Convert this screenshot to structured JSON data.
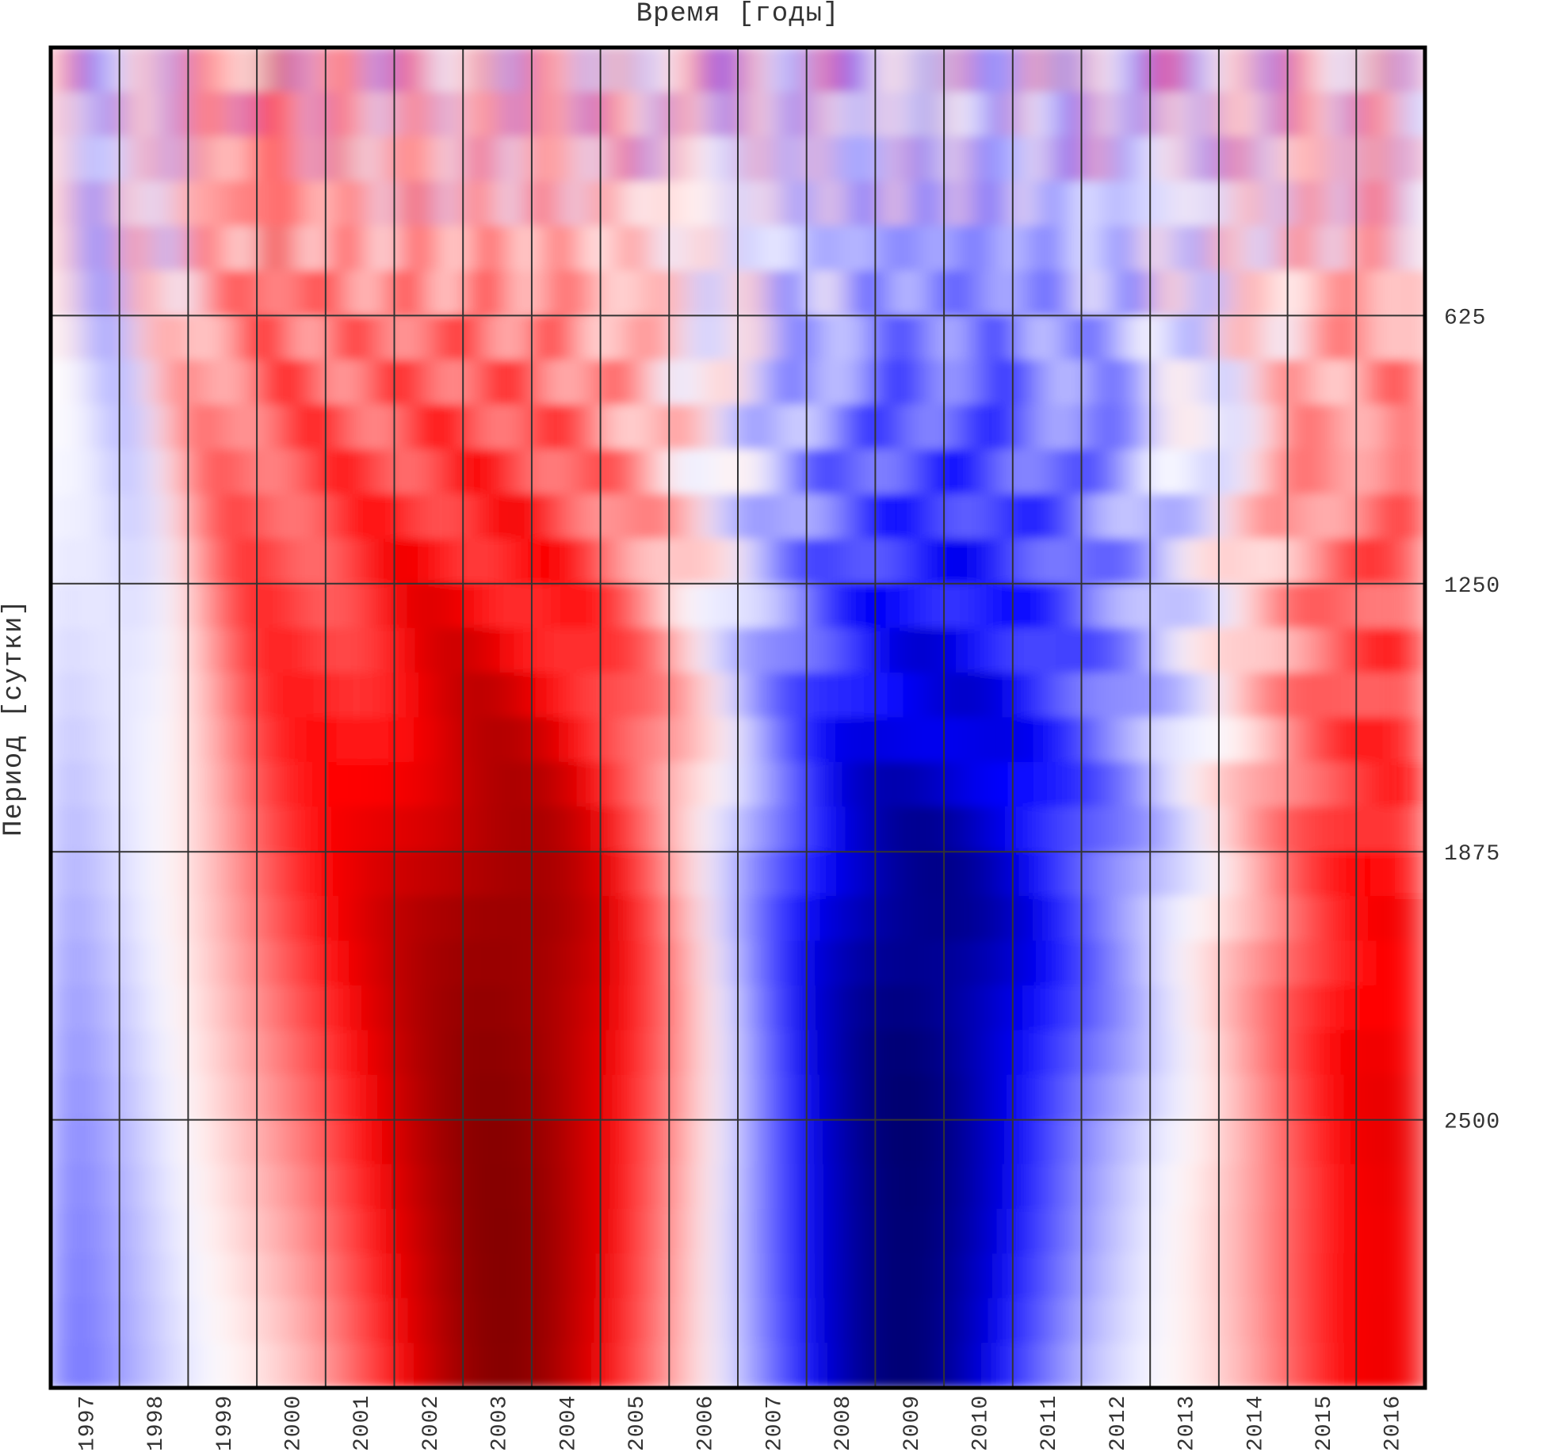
{
  "chart_data": {
    "type": "heatmap",
    "title": "Время [годы]",
    "ylabel": "Период [сутки]",
    "categories": [
      "1997",
      "1998",
      "1999",
      "2000",
      "2001",
      "2002",
      "2003",
      "2004",
      "2005",
      "2006",
      "2007",
      "2008",
      "2009",
      "2010",
      "2011",
      "2012",
      "2013",
      "2014",
      "2015",
      "2016"
    ],
    "y_ticks": [
      "625",
      "1250",
      "1875",
      "2500"
    ],
    "ylim": [
      0,
      3125
    ],
    "grid": true,
    "colormap": [
      "#0000ff",
      "#ffffff",
      "#ff0000"
    ],
    "colors": {
      "dark_blue": "#00005a",
      "blue": "#0000ff",
      "white": "#ffffff",
      "red": "#ff0000",
      "dark_red": "#7a0000",
      "grid": "#333333"
    }
  }
}
